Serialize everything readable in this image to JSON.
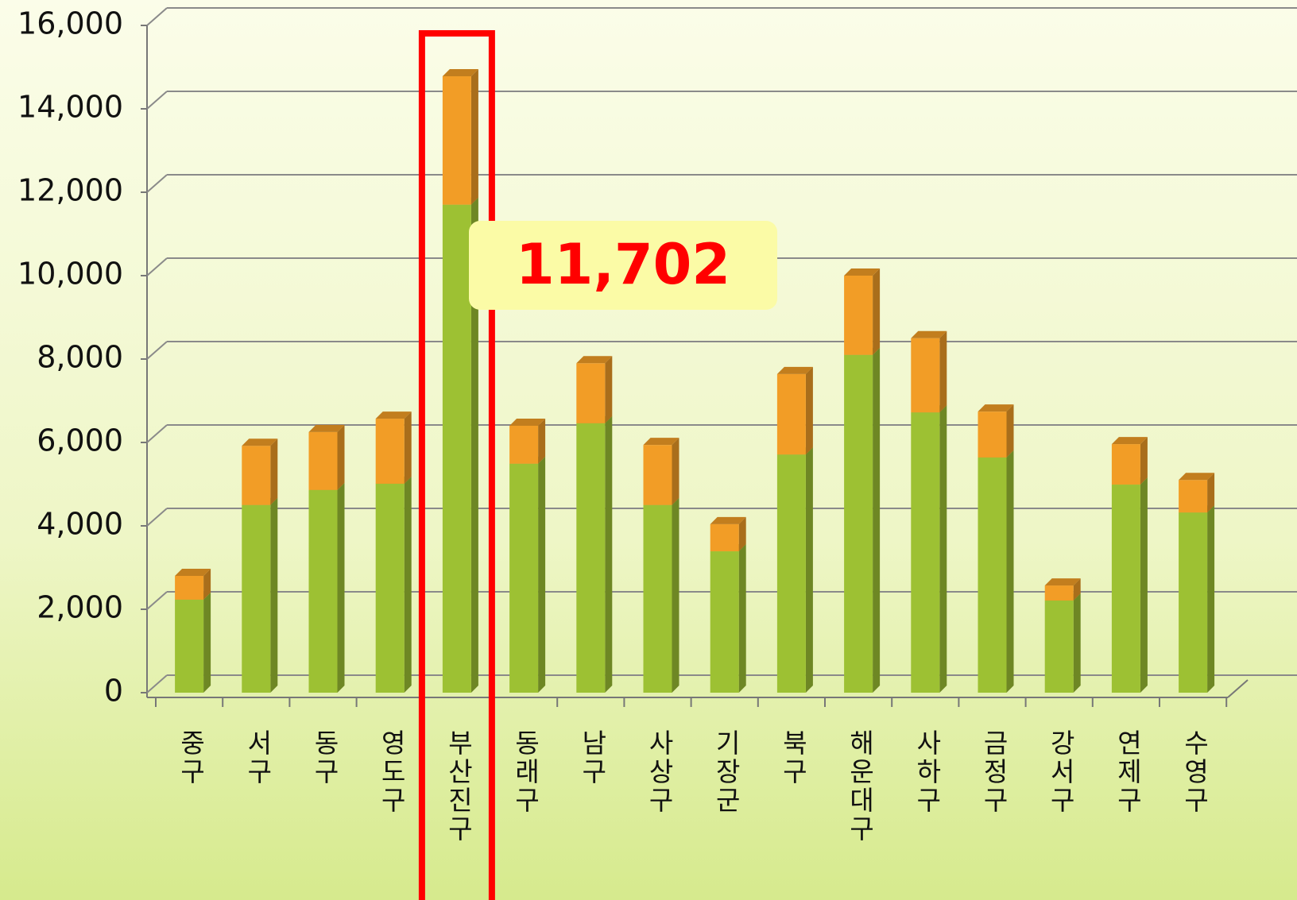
{
  "chart_data": {
    "type": "stacked-bar-3d",
    "categories": [
      "중구",
      "서구",
      "동구",
      "영도구",
      "부산진구",
      "동래구",
      "남구",
      "사상구",
      "기장군",
      "북구",
      "해운대구",
      "사하구",
      "금정구",
      "강서구",
      "연제구",
      "수영구"
    ],
    "series": [
      {
        "color": "#9dc133",
        "values": [
          2230,
          4500,
          4860,
          5010,
          11702,
          5490,
          6460,
          4500,
          3390,
          5710,
          8100,
          6720,
          5640,
          2210,
          4990,
          4320
        ],
        "value_labels": [
          null,
          null,
          null,
          null,
          "11,702",
          null,
          null,
          null,
          null,
          null,
          null,
          null,
          null,
          null,
          null,
          null
        ]
      },
      {
        "color": "#f29d26",
        "values": [
          570,
          1420,
          1390,
          1560,
          3080,
          910,
          1440,
          1440,
          650,
          1930,
          1900,
          1780,
          1100,
          360,
          970,
          780
        ]
      }
    ],
    "ylim": [
      0,
      16000
    ],
    "yticks": [
      0,
      {
        "value": 2000,
        "label": "2,000"
      },
      {
        "value": 4000,
        "label": "4,000"
      },
      {
        "value": 6000,
        "label": "6,000"
      },
      {
        "value": 8000,
        "label": "8,000"
      },
      {
        "value": 10000,
        "label": "10,000"
      },
      {
        "value": 12000,
        "label": "12,000"
      },
      {
        "value": 14000,
        "label": "14,000"
      },
      {
        "value": 16000,
        "label": "16,000"
      }
    ],
    "grid": true,
    "highlight_index": 4
  }
}
